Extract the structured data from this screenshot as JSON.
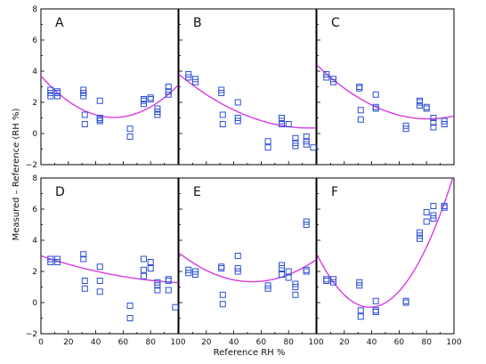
{
  "figure": {
    "ylabel": "Measured – Reference (RH %)",
    "xlabel": "Reference RH %"
  },
  "colors": {
    "marker": "#2b4fd8",
    "curve": "#d63be0",
    "axis": "#000000"
  },
  "chart_data": [
    {
      "type": "scatter",
      "title": "A",
      "xlim": [
        0,
        100
      ],
      "ylim": [
        -2,
        8
      ],
      "xticks": [],
      "yticks": [
        "−2",
        "0",
        "2",
        "4",
        "6",
        "8"
      ],
      "points": [
        [
          7,
          2.8
        ],
        [
          7,
          2.6
        ],
        [
          7,
          2.4
        ],
        [
          12,
          2.7
        ],
        [
          12,
          2.6
        ],
        [
          12,
          2.4
        ],
        [
          31,
          2.8
        ],
        [
          31,
          2.6
        ],
        [
          31,
          2.4
        ],
        [
          32,
          1.2
        ],
        [
          32,
          0.6
        ],
        [
          43,
          2.1
        ],
        [
          43,
          1.0
        ],
        [
          43,
          0.9
        ],
        [
          43,
          0.8
        ],
        [
          65,
          0.3
        ],
        [
          65,
          -0.2
        ],
        [
          75,
          2.2
        ],
        [
          75,
          2.1
        ],
        [
          75,
          1.9
        ],
        [
          80,
          2.3
        ],
        [
          80,
          2.2
        ],
        [
          85,
          1.6
        ],
        [
          85,
          1.4
        ],
        [
          85,
          1.2
        ],
        [
          93,
          3.0
        ],
        [
          93,
          2.7
        ],
        [
          93,
          2.5
        ]
      ],
      "fit": [
        0.000941,
        -0.1002,
        3.7
      ]
    },
    {
      "type": "scatter",
      "title": "B",
      "xlim": [
        0,
        100
      ],
      "ylim": [
        -2,
        8
      ],
      "xticks": [],
      "yticks": [],
      "points": [
        [
          7,
          3.8
        ],
        [
          7,
          3.6
        ],
        [
          12,
          3.5
        ],
        [
          12,
          3.3
        ],
        [
          31,
          2.8
        ],
        [
          31,
          2.6
        ],
        [
          32,
          1.2
        ],
        [
          32,
          0.6
        ],
        [
          43,
          2.0
        ],
        [
          43,
          1.0
        ],
        [
          43,
          0.8
        ],
        [
          65,
          -0.5
        ],
        [
          65,
          -0.9
        ],
        [
          75,
          1.0
        ],
        [
          75,
          0.8
        ],
        [
          75,
          0.6
        ],
        [
          80,
          0.6
        ],
        [
          85,
          -0.3
        ],
        [
          85,
          -0.6
        ],
        [
          85,
          -0.8
        ],
        [
          93,
          -0.2
        ],
        [
          93,
          -0.5
        ],
        [
          93,
          -0.7
        ],
        [
          98,
          -0.9
        ]
      ],
      "fit": [
        0.00038,
        -0.0724,
        3.8
      ]
    },
    {
      "type": "scatter",
      "title": "C",
      "xlim": [
        0,
        100
      ],
      "ylim": [
        -2,
        8
      ],
      "xticks": [],
      "yticks": [],
      "points": [
        [
          7,
          3.8
        ],
        [
          7,
          3.6
        ],
        [
          12,
          3.5
        ],
        [
          12,
          3.3
        ],
        [
          31,
          3.0
        ],
        [
          31,
          2.9
        ],
        [
          32,
          1.5
        ],
        [
          32,
          0.9
        ],
        [
          43,
          2.5
        ],
        [
          43,
          1.7
        ],
        [
          43,
          1.6
        ],
        [
          65,
          0.5
        ],
        [
          65,
          0.3
        ],
        [
          75,
          2.1
        ],
        [
          75,
          2.0
        ],
        [
          75,
          1.8
        ],
        [
          80,
          1.7
        ],
        [
          80,
          1.6
        ],
        [
          85,
          1.0
        ],
        [
          85,
          0.7
        ],
        [
          85,
          0.4
        ],
        [
          93,
          0.8
        ],
        [
          93,
          0.6
        ]
      ],
      "fit": [
        0.000523,
        -0.0851,
        4.4
      ]
    },
    {
      "type": "scatter",
      "title": "D",
      "xlim": [
        0,
        100
      ],
      "ylim": [
        -2,
        8
      ],
      "xticks": [
        "0",
        "20",
        "40",
        "60",
        "80",
        "100"
      ],
      "yticks": [
        "−2",
        "0",
        "2",
        "4",
        "6",
        "8"
      ],
      "points": [
        [
          7,
          2.8
        ],
        [
          7,
          2.6
        ],
        [
          12,
          2.8
        ],
        [
          12,
          2.6
        ],
        [
          31,
          3.1
        ],
        [
          31,
          2.8
        ],
        [
          32,
          1.4
        ],
        [
          32,
          0.9
        ],
        [
          43,
          2.3
        ],
        [
          43,
          1.4
        ],
        [
          43,
          0.7
        ],
        [
          65,
          -0.2
        ],
        [
          65,
          -1.0
        ],
        [
          75,
          2.8
        ],
        [
          75,
          2.1
        ],
        [
          75,
          1.7
        ],
        [
          80,
          2.6
        ],
        [
          80,
          2.2
        ],
        [
          85,
          1.3
        ],
        [
          85,
          1.1
        ],
        [
          85,
          0.8
        ],
        [
          93,
          1.5
        ],
        [
          93,
          1.4
        ],
        [
          93,
          0.8
        ],
        [
          98,
          -0.3
        ]
      ],
      "fit": [
        0.000122,
        -0.0294,
        3.0
      ]
    },
    {
      "type": "scatter",
      "title": "E",
      "xlim": [
        0,
        100
      ],
      "ylim": [
        -2,
        8
      ],
      "xticks": [
        "20",
        "40",
        "60",
        "80",
        "100"
      ],
      "yticks": [],
      "points": [
        [
          7,
          2.1
        ],
        [
          7,
          1.9
        ],
        [
          12,
          2.0
        ],
        [
          12,
          1.8
        ],
        [
          31,
          2.3
        ],
        [
          31,
          2.2
        ],
        [
          32,
          0.5
        ],
        [
          32,
          -0.1
        ],
        [
          43,
          3.0
        ],
        [
          43,
          2.2
        ],
        [
          43,
          2.0
        ],
        [
          65,
          1.1
        ],
        [
          65,
          0.9
        ],
        [
          75,
          2.4
        ],
        [
          75,
          2.2
        ],
        [
          75,
          1.8
        ],
        [
          80,
          2.0
        ],
        [
          80,
          1.6
        ],
        [
          85,
          1.2
        ],
        [
          85,
          1.0
        ],
        [
          85,
          0.5
        ],
        [
          93,
          5.2
        ],
        [
          93,
          5.0
        ],
        [
          93,
          2.1
        ],
        [
          93,
          2.0
        ]
      ],
      "fit": [
        0.000651,
        -0.0696,
        3.2
      ]
    },
    {
      "type": "scatter",
      "title": "F",
      "xlim": [
        0,
        100
      ],
      "ylim": [
        -2,
        8
      ],
      "xticks": [
        "20",
        "40",
        "60",
        "80",
        "100"
      ],
      "yticks": [],
      "points": [
        [
          7,
          1.5
        ],
        [
          7,
          1.4
        ],
        [
          12,
          1.5
        ],
        [
          12,
          1.3
        ],
        [
          31,
          1.3
        ],
        [
          31,
          1.1
        ],
        [
          32,
          -0.5
        ],
        [
          32,
          -0.9
        ],
        [
          43,
          0.1
        ],
        [
          43,
          -0.5
        ],
        [
          43,
          -0.6
        ],
        [
          65,
          0.1
        ],
        [
          65,
          0.0
        ],
        [
          75,
          4.5
        ],
        [
          75,
          4.3
        ],
        [
          75,
          4.1
        ],
        [
          80,
          5.8
        ],
        [
          80,
          5.2
        ],
        [
          85,
          6.2
        ],
        [
          85,
          5.6
        ],
        [
          85,
          5.4
        ],
        [
          93,
          6.2
        ],
        [
          93,
          6.1
        ]
      ],
      "fit": [
        0.00227,
        -0.1757,
        3.1
      ]
    }
  ]
}
